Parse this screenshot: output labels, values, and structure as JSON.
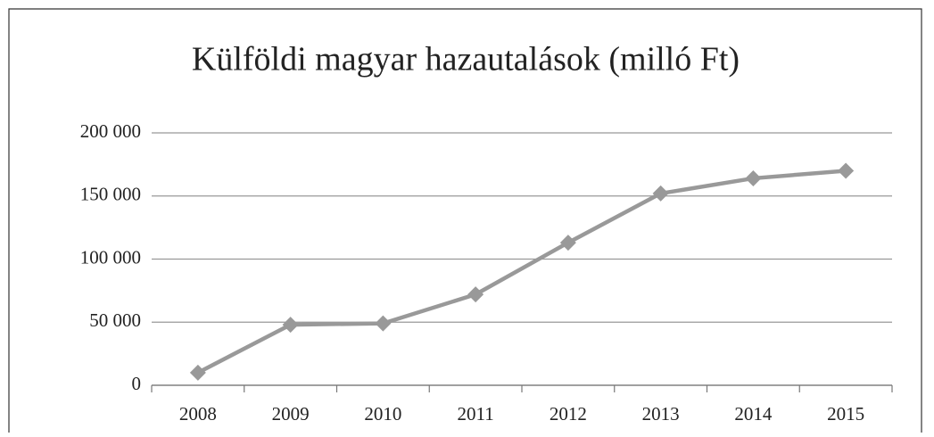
{
  "chart_data": {
    "type": "line",
    "title": "Külföldi magyar hazautalások (milló Ft)",
    "categories": [
      "2008",
      "2009",
      "2010",
      "2011",
      "2012",
      "2013",
      "2014",
      "2015"
    ],
    "values": [
      10000,
      48000,
      49000,
      72000,
      113000,
      152000,
      164000,
      170000
    ],
    "color": "#999999",
    "ylim": [
      0,
      200000
    ],
    "yticks": [
      0,
      {
        "value": 50000,
        "label": "50 000"
      },
      {
        "value": 100000,
        "label": "100 000"
      },
      {
        "value": 150000,
        "label": "150 000"
      },
      {
        "value": 200000,
        "label": "200 000"
      }
    ],
    "grid": true,
    "marker": "diamond"
  }
}
